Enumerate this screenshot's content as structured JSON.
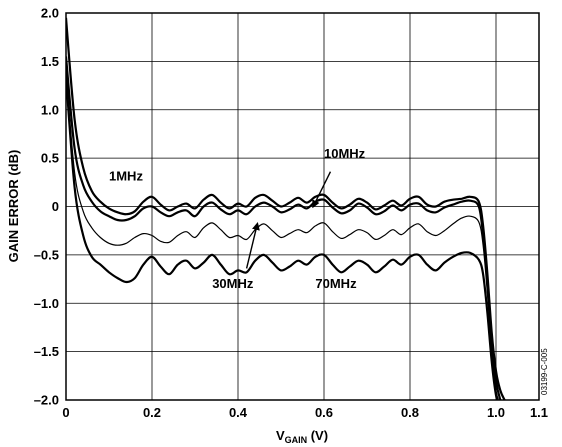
{
  "chart_data": {
    "type": "line",
    "xlabel_main": "V",
    "xlabel_sub": "GAIN",
    "xlabel_unit": " (V)",
    "ylabel": "GAIN ERROR (dB)",
    "xlim": [
      0,
      1.1
    ],
    "ylim": [
      -2.0,
      2.0
    ],
    "grid": true,
    "x_ticks": [
      {
        "value": 0,
        "label": "0"
      },
      {
        "value": 0.2,
        "label": "0.2"
      },
      {
        "value": 0.4,
        "label": "0.4"
      },
      {
        "value": 0.6,
        "label": "0.6"
      },
      {
        "value": 0.8,
        "label": "0.8"
      },
      {
        "value": 1.0,
        "label": "1.0"
      },
      {
        "value": 1.1,
        "label": "1.1"
      }
    ],
    "y_ticks": [
      {
        "value": 2.0,
        "label": "2.0"
      },
      {
        "value": 1.5,
        "label": "1.5"
      },
      {
        "value": 1.0,
        "label": "1.0"
      },
      {
        "value": 0.5,
        "label": "0.5"
      },
      {
        "value": 0,
        "label": "0"
      },
      {
        "value": -0.5,
        "label": "–0.5"
      },
      {
        "value": -1.0,
        "label": "–1.0"
      },
      {
        "value": -1.5,
        "label": "–1.5"
      },
      {
        "value": -2.0,
        "label": "–2.0"
      }
    ],
    "series": [
      {
        "name": "1MHz",
        "stroke_width": 2.2,
        "x": [
          0,
          0.02,
          0.04,
          0.06,
          0.08,
          0.1,
          0.12,
          0.14,
          0.16,
          0.18,
          0.2,
          0.22,
          0.24,
          0.26,
          0.28,
          0.3,
          0.32,
          0.34,
          0.36,
          0.38,
          0.4,
          0.42,
          0.44,
          0.46,
          0.48,
          0.5,
          0.52,
          0.54,
          0.56,
          0.58,
          0.6,
          0.62,
          0.64,
          0.66,
          0.68,
          0.7,
          0.72,
          0.74,
          0.76,
          0.78,
          0.8,
          0.82,
          0.84,
          0.86,
          0.88,
          0.9,
          0.92,
          0.94,
          0.96,
          0.97,
          0.98,
          0.99,
          1.0,
          1.01,
          1.02
        ],
        "y": [
          1.95,
          0.9,
          0.4,
          0.16,
          0.05,
          -0.02,
          -0.06,
          -0.08,
          -0.05,
          0.05,
          0.1,
          0.02,
          -0.04,
          0.0,
          0.03,
          -0.02,
          0.07,
          0.12,
          0.04,
          -0.02,
          0.03,
          0.0,
          0.09,
          0.12,
          0.06,
          0.0,
          0.04,
          0.09,
          0.04,
          0.1,
          0.12,
          0.04,
          -0.02,
          0.02,
          0.08,
          0.04,
          -0.03,
          0.01,
          0.06,
          0.01,
          0.08,
          0.1,
          0.02,
          0.0,
          0.05,
          0.07,
          0.08,
          0.1,
          0.05,
          -0.2,
          -0.7,
          -1.3,
          -1.7,
          -1.9,
          -2.0
        ]
      },
      {
        "name": "10MHz",
        "stroke_width": 2.2,
        "x": [
          0,
          0.02,
          0.04,
          0.06,
          0.08,
          0.1,
          0.12,
          0.14,
          0.16,
          0.18,
          0.2,
          0.22,
          0.24,
          0.26,
          0.28,
          0.3,
          0.32,
          0.34,
          0.36,
          0.38,
          0.4,
          0.42,
          0.44,
          0.46,
          0.48,
          0.5,
          0.52,
          0.54,
          0.56,
          0.58,
          0.6,
          0.62,
          0.64,
          0.66,
          0.68,
          0.7,
          0.72,
          0.74,
          0.76,
          0.78,
          0.8,
          0.82,
          0.84,
          0.86,
          0.88,
          0.9,
          0.92,
          0.94,
          0.96,
          0.97,
          0.98,
          0.99,
          1.0,
          1.01,
          1.02
        ],
        "y": [
          1.55,
          0.6,
          0.22,
          0.05,
          -0.05,
          -0.1,
          -0.14,
          -0.14,
          -0.1,
          -0.02,
          0.0,
          -0.06,
          -0.1,
          -0.06,
          -0.04,
          -0.1,
          0.0,
          0.04,
          -0.03,
          -0.08,
          -0.04,
          -0.08,
          0.0,
          0.04,
          0.0,
          -0.06,
          -0.03,
          0.02,
          -0.02,
          0.05,
          0.07,
          -0.01,
          -0.07,
          -0.04,
          0.03,
          -0.01,
          -0.08,
          -0.05,
          0.01,
          -0.04,
          0.02,
          0.03,
          -0.04,
          -0.06,
          -0.01,
          0.02,
          0.05,
          0.06,
          0.0,
          -0.3,
          -0.8,
          -1.4,
          -1.8,
          -2.0,
          -2.1
        ]
      },
      {
        "name": "30MHz",
        "stroke_width": 1.2,
        "x": [
          0,
          0.02,
          0.04,
          0.06,
          0.08,
          0.1,
          0.12,
          0.14,
          0.16,
          0.18,
          0.2,
          0.22,
          0.24,
          0.26,
          0.28,
          0.3,
          0.32,
          0.34,
          0.36,
          0.38,
          0.4,
          0.42,
          0.44,
          0.46,
          0.48,
          0.5,
          0.52,
          0.54,
          0.56,
          0.58,
          0.6,
          0.62,
          0.64,
          0.66,
          0.68,
          0.7,
          0.72,
          0.74,
          0.76,
          0.78,
          0.8,
          0.82,
          0.84,
          0.86,
          0.88,
          0.9,
          0.92,
          0.94,
          0.96,
          0.97,
          0.98,
          0.99,
          1.0,
          1.01,
          1.02
        ],
        "y": [
          1.4,
          0.35,
          -0.05,
          -0.22,
          -0.32,
          -0.38,
          -0.4,
          -0.38,
          -0.32,
          -0.28,
          -0.3,
          -0.36,
          -0.37,
          -0.3,
          -0.26,
          -0.32,
          -0.22,
          -0.17,
          -0.24,
          -0.32,
          -0.3,
          -0.34,
          -0.24,
          -0.18,
          -0.25,
          -0.32,
          -0.28,
          -0.24,
          -0.27,
          -0.2,
          -0.17,
          -0.26,
          -0.33,
          -0.29,
          -0.24,
          -0.27,
          -0.34,
          -0.3,
          -0.24,
          -0.29,
          -0.22,
          -0.18,
          -0.26,
          -0.3,
          -0.25,
          -0.18,
          -0.12,
          -0.1,
          -0.16,
          -0.4,
          -0.9,
          -1.5,
          -1.9,
          -2.05,
          -2.1
        ]
      },
      {
        "name": "70MHz",
        "stroke_width": 2.2,
        "x": [
          0,
          0.02,
          0.04,
          0.06,
          0.08,
          0.1,
          0.12,
          0.14,
          0.16,
          0.18,
          0.2,
          0.22,
          0.24,
          0.26,
          0.28,
          0.3,
          0.32,
          0.34,
          0.36,
          0.38,
          0.4,
          0.42,
          0.44,
          0.46,
          0.48,
          0.5,
          0.52,
          0.54,
          0.56,
          0.58,
          0.6,
          0.62,
          0.64,
          0.66,
          0.68,
          0.7,
          0.72,
          0.74,
          0.76,
          0.78,
          0.8,
          0.82,
          0.84,
          0.86,
          0.88,
          0.9,
          0.92,
          0.94,
          0.96,
          0.97,
          0.98,
          0.99,
          1.0,
          1.01,
          1.02
        ],
        "y": [
          1.35,
          0.2,
          -0.3,
          -0.52,
          -0.6,
          -0.68,
          -0.74,
          -0.78,
          -0.74,
          -0.6,
          -0.52,
          -0.62,
          -0.7,
          -0.6,
          -0.56,
          -0.64,
          -0.58,
          -0.5,
          -0.6,
          -0.7,
          -0.66,
          -0.68,
          -0.56,
          -0.5,
          -0.58,
          -0.66,
          -0.62,
          -0.56,
          -0.6,
          -0.52,
          -0.5,
          -0.6,
          -0.68,
          -0.62,
          -0.56,
          -0.6,
          -0.68,
          -0.62,
          -0.55,
          -0.6,
          -0.52,
          -0.5,
          -0.6,
          -0.66,
          -0.58,
          -0.52,
          -0.48,
          -0.48,
          -0.55,
          -0.7,
          -1.1,
          -1.6,
          -1.95,
          -2.1,
          -2.2
        ]
      }
    ],
    "annotations": [
      {
        "text": "1MHz",
        "x": 0.1,
        "y": 0.27
      },
      {
        "text": "10MHz",
        "x": 0.6,
        "y": 0.5
      },
      {
        "text": "30MHz",
        "x": 0.34,
        "y": -0.84
      },
      {
        "text": "70MHz",
        "x": 0.58,
        "y": -0.84
      }
    ],
    "figure_id": "03199-C-005"
  }
}
